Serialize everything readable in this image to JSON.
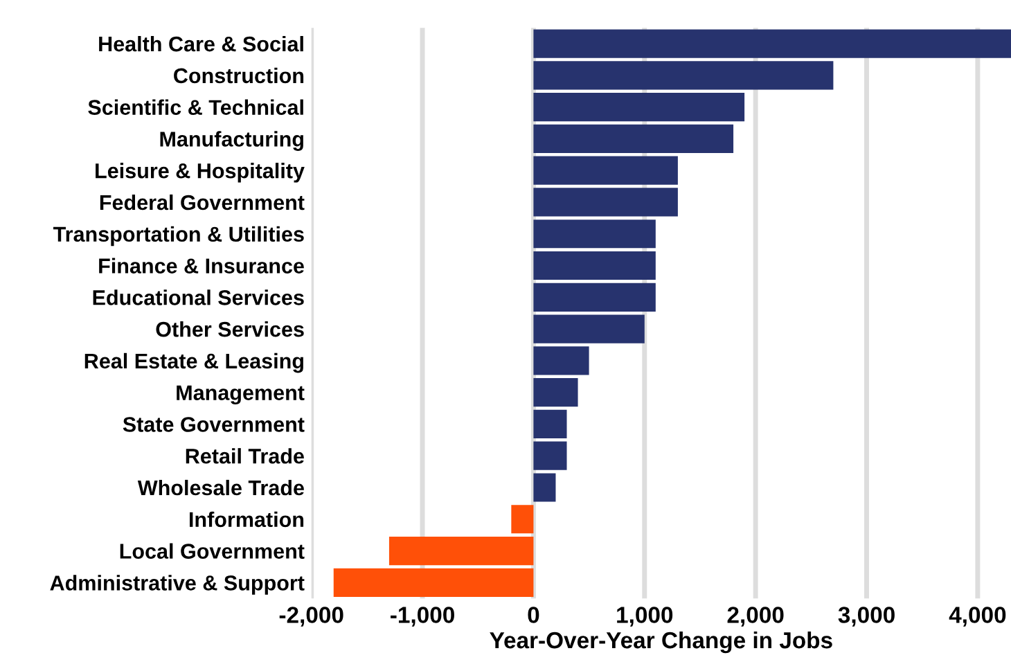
{
  "chart_data": {
    "type": "bar",
    "orientation": "horizontal",
    "xlabel": "Year-Over-Year Change in Jobs",
    "categories": [
      "Health Care & Social",
      "Construction",
      "Scientific & Technical",
      "Manufacturing",
      "Leisure & Hospitality",
      "Federal Government",
      "Transportation & Utilities",
      "Finance & Insurance",
      "Educational Services",
      "Other Services",
      "Real Estate & Leasing",
      "Management",
      "State Government",
      "Retail Trade",
      "Wholesale Trade",
      "Information",
      "Local Government",
      "Administrative & Support"
    ],
    "values": [
      4300,
      2700,
      1900,
      1800,
      1300,
      1300,
      1100,
      1100,
      1100,
      1000,
      500,
      400,
      300,
      300,
      200,
      -200,
      -1300,
      -1800
    ],
    "colors": [
      "#27336e",
      "#27336e",
      "#27336e",
      "#27336e",
      "#27336e",
      "#27336e",
      "#27336e",
      "#27336e",
      "#27336e",
      "#27336e",
      "#27336e",
      "#27336e",
      "#27336e",
      "#27336e",
      "#27336e",
      "#ff5008",
      "#ff5008",
      "#ff5008"
    ],
    "xticks": [
      {
        "value": -2000,
        "label": "-2,000"
      },
      {
        "value": -1000,
        "label": "-1,000"
      },
      0,
      {
        "value": 1000,
        "label": "1,000"
      },
      {
        "value": 2000,
        "label": "2,000"
      },
      {
        "value": 3000,
        "label": "3,000"
      },
      {
        "value": 4000,
        "label": "4,000"
      }
    ],
    "xlim": [
      -2000,
      4300
    ],
    "grid": "x",
    "legend": false
  }
}
